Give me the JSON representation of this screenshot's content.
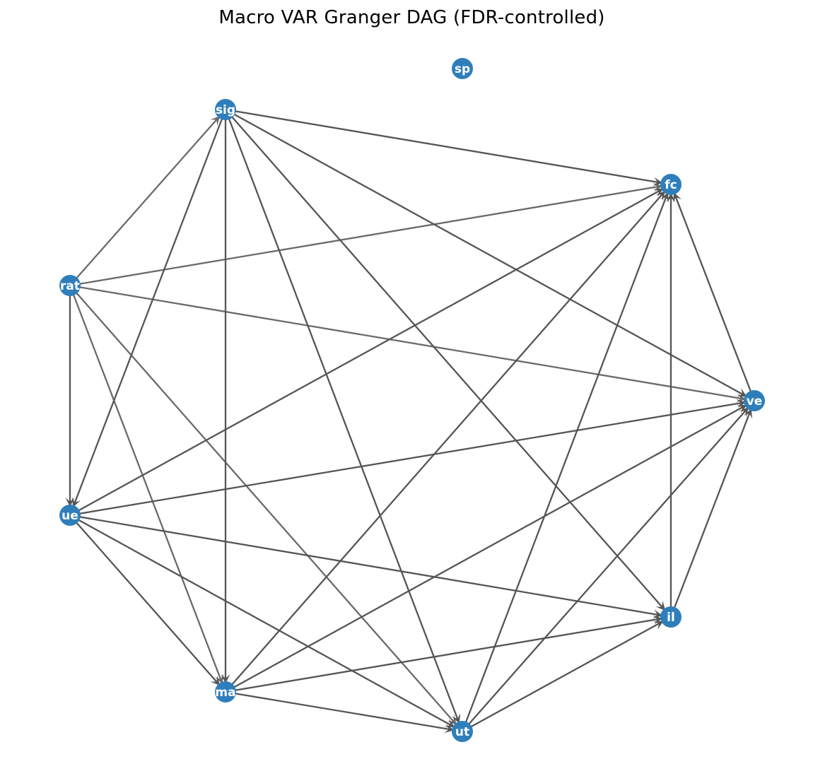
{
  "title": "Macro VAR Granger DAG (FDR-controlled)",
  "colors": {
    "node_fill": "#2f7ebc",
    "edge_dark": "#555555",
    "edge_light": "#6a6a6a",
    "label": "#ffffff",
    "background": "#ffffff"
  },
  "nodes": [
    {
      "id": "spread",
      "label": "sp"
    },
    {
      "id": "sig",
      "label": "sig"
    },
    {
      "id": "fc",
      "label": "fc"
    },
    {
      "id": "rat",
      "label": "rat"
    },
    {
      "id": "ve",
      "label": "ve"
    },
    {
      "id": "ue",
      "label": "ue"
    },
    {
      "id": "il",
      "label": "il"
    },
    {
      "id": "ma",
      "label": "ma"
    },
    {
      "id": "ut",
      "label": "ut"
    }
  ],
  "edges": [
    {
      "source": "rat",
      "target": "sig",
      "shade": "light"
    },
    {
      "source": "rat",
      "target": "fc",
      "shade": "light"
    },
    {
      "source": "rat",
      "target": "ve",
      "shade": "light"
    },
    {
      "source": "rat",
      "target": "ue",
      "shade": "dark"
    },
    {
      "source": "rat",
      "target": "ma",
      "shade": "light"
    },
    {
      "source": "rat",
      "target": "ut",
      "shade": "light"
    },
    {
      "source": "sig",
      "target": "fc",
      "shade": "dark"
    },
    {
      "source": "sig",
      "target": "ve",
      "shade": "dark"
    },
    {
      "source": "sig",
      "target": "ue",
      "shade": "dark"
    },
    {
      "source": "sig",
      "target": "ma",
      "shade": "dark"
    },
    {
      "source": "sig",
      "target": "ut",
      "shade": "dark"
    },
    {
      "source": "sig",
      "target": "il",
      "shade": "dark"
    },
    {
      "source": "ve",
      "target": "fc",
      "shade": "dark"
    },
    {
      "source": "il",
      "target": "fc",
      "shade": "dark"
    },
    {
      "source": "ue",
      "target": "fc",
      "shade": "dark"
    },
    {
      "source": "ma",
      "target": "fc",
      "shade": "dark"
    },
    {
      "source": "ut",
      "target": "fc",
      "shade": "dark"
    },
    {
      "source": "ue",
      "target": "ve",
      "shade": "dark"
    },
    {
      "source": "il",
      "target": "ve",
      "shade": "dark"
    },
    {
      "source": "ma",
      "target": "ve",
      "shade": "dark"
    },
    {
      "source": "ut",
      "target": "ve",
      "shade": "dark"
    },
    {
      "source": "ue",
      "target": "il",
      "shade": "dark"
    },
    {
      "source": "ma",
      "target": "il",
      "shade": "dark"
    },
    {
      "source": "ut",
      "target": "il",
      "shade": "dark"
    },
    {
      "source": "ue",
      "target": "ma",
      "shade": "dark"
    },
    {
      "source": "ue",
      "target": "ut",
      "shade": "dark"
    },
    {
      "source": "ma",
      "target": "ut",
      "shade": "dark"
    }
  ]
}
